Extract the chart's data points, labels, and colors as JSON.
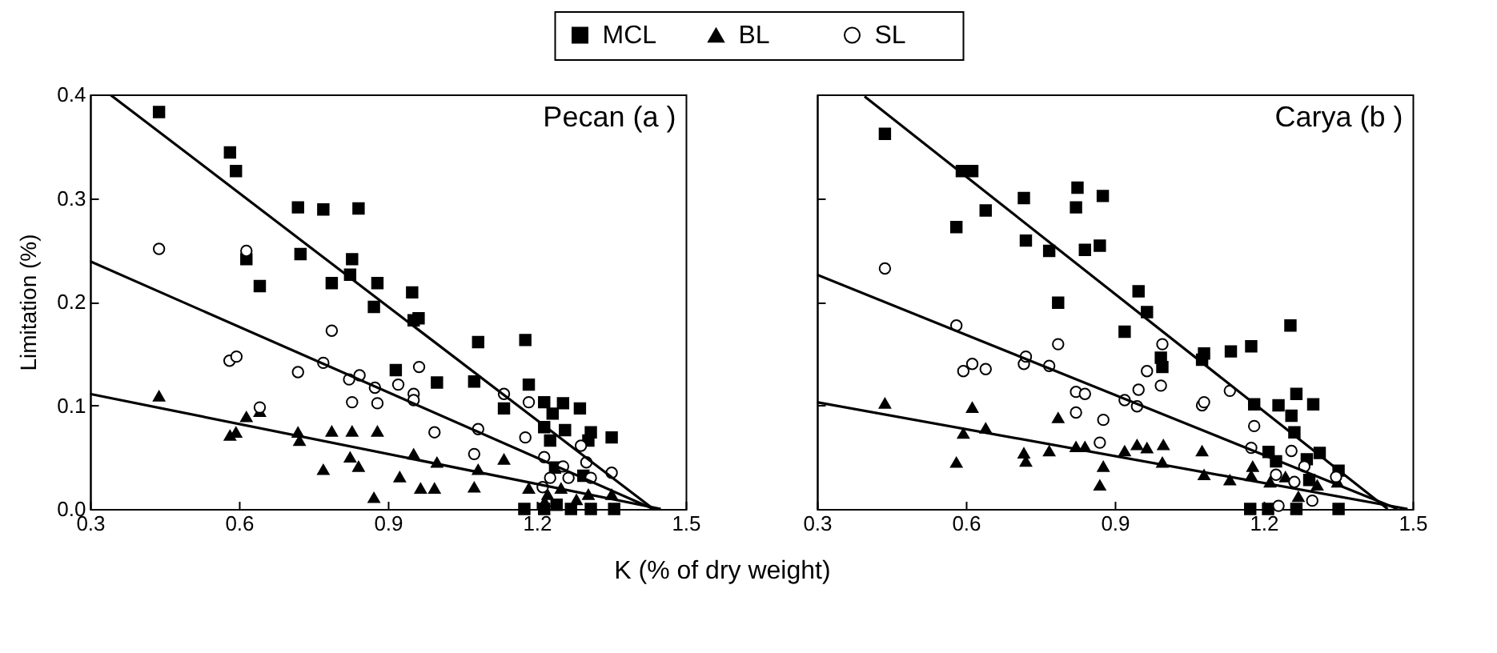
{
  "chart_data": [
    {
      "type": "scatter",
      "ylabel": "Limitation (%)",
      "xlabel": "K (% of dry weight)",
      "annotations": [
        "Pecan (a )"
      ],
      "legend": "top",
      "grid": false,
      "xlim": [
        0.3,
        1.5
      ],
      "xticks": [
        0.3,
        0.6,
        0.9,
        1.2,
        1.5
      ],
      "ylim": [
        0,
        0.4
      ],
      "yticks": [
        {
          "value": 0,
          "label": "0.0"
        },
        0.1,
        0.2,
        0.3,
        0.4
      ],
      "series": [
        {
          "name": "MCL",
          "color": "#000000",
          "marker": "square",
          "x": [
            0.439,
            0.582,
            0.594,
            0.615,
            0.642,
            0.719,
            0.77,
            0.841,
            0.724,
            0.787,
            0.828,
            0.824,
            0.879,
            0.872,
            0.916,
            0.949,
            0.962,
            0.952,
            1.082,
            1.177,
            1.074,
            1.134,
            1.184,
            1.215,
            1.253,
            1.287,
            1.232,
            1.215,
            1.257,
            1.309,
            1.351,
            1.304,
            1.227,
            0.999,
            1.237,
            1.294,
            1.175,
            1.215,
            1.269,
            1.309,
            1.356,
            1.24
          ],
          "values": [
            0.383,
            0.344,
            0.326,
            0.241,
            0.215,
            0.291,
            0.289,
            0.29,
            0.246,
            0.218,
            0.241,
            0.226,
            0.218,
            0.195,
            0.134,
            0.209,
            0.184,
            0.182,
            0.161,
            0.163,
            0.123,
            0.097,
            0.12,
            0.103,
            0.102,
            0.097,
            0.092,
            0.079,
            0.076,
            0.074,
            0.069,
            0.066,
            0.066,
            0.122,
            0.04,
            0.032,
            0,
            0,
            0,
            0,
            0,
            0.004
          ]
        },
        {
          "name": "BL",
          "color": "#000000",
          "marker": "triangle",
          "x": [
            0.439,
            0.582,
            0.594,
            0.615,
            0.642,
            0.719,
            0.722,
            0.787,
            0.828,
            0.879,
            0.824,
            0.841,
            0.77,
            0.872,
            0.952,
            0.999,
            0.924,
            0.966,
            0.994,
            1.074,
            1.082,
            1.134,
            1.184,
            1.222,
            1.249,
            1.304,
            1.351,
            1.28,
            1.216
          ],
          "values": [
            0.109,
            0.071,
            0.074,
            0.089,
            0.094,
            0.074,
            0.066,
            0.075,
            0.075,
            0.075,
            0.05,
            0.041,
            0.038,
            0.011,
            0.053,
            0.045,
            0.031,
            0.02,
            0.02,
            0.021,
            0.038,
            0.048,
            0.02,
            0.014,
            0.02,
            0.014,
            0.014,
            0.009,
            0.007
          ]
        },
        {
          "name": "SL",
          "color": "#000000",
          "marker": "circle",
          "x": [
            0.439,
            0.615,
            0.581,
            0.595,
            0.719,
            0.787,
            0.77,
            0.822,
            0.843,
            0.874,
            0.828,
            0.879,
            0.642,
            0.963,
            0.921,
            0.952,
            0.952,
            0.994,
            1.082,
            1.134,
            1.184,
            1.074,
            1.177,
            1.215,
            1.253,
            1.289,
            1.3,
            1.351,
            1.227,
            1.264,
            1.309,
            1.212
          ],
          "values": [
            0.251,
            0.249,
            0.143,
            0.147,
            0.132,
            0.172,
            0.141,
            0.125,
            0.129,
            0.117,
            0.103,
            0.102,
            0.098,
            0.137,
            0.12,
            0.111,
            0.105,
            0.074,
            0.077,
            0.111,
            0.103,
            0.053,
            0.069,
            0.05,
            0.041,
            0.061,
            0.045,
            0.035,
            0.03,
            0.03,
            0.03,
            0.021
          ]
        },
        {
          "type": "line",
          "color": "#000000",
          "x": [
            0.34,
            1.435
          ],
          "values": [
            0.4,
            0
          ]
        },
        {
          "type": "line",
          "color": "#000000",
          "x": [
            0.3,
            1.435
          ],
          "values": [
            0.239,
            0
          ]
        },
        {
          "type": "line",
          "color": "#000000",
          "x": [
            0.3,
            1.45
          ],
          "values": [
            0.111,
            0
          ]
        }
      ]
    },
    {
      "type": "scatter",
      "annotations": [
        "Carya (b )"
      ],
      "grid": false,
      "tick_labels": "x",
      "xlim": [
        0.3,
        1.5
      ],
      "xticks": [
        0.3,
        0.6,
        0.9,
        1.2,
        1.5
      ],
      "ylim": [
        0,
        0.4
      ],
      "yticks": [
        {
          "value": 0,
          "label": null
        },
        {
          "value": 0.1,
          "label": null
        },
        {
          "value": 0.2,
          "label": null
        },
        {
          "value": 0.3,
          "label": null
        },
        {
          "value": 0.4,
          "label": null
        }
      ],
      "series": [
        {
          "name": "MCL",
          "color": "#000000",
          "marker": "square",
          "x": [
            0.437,
            0.592,
            0.613,
            0.581,
            0.64,
            0.717,
            0.721,
            0.768,
            0.786,
            0.825,
            0.822,
            0.876,
            0.84,
            0.87,
            0.948,
            0.965,
            0.92,
            0.993,
            0.996,
            1.08,
            1.134,
            1.175,
            1.076,
            1.254,
            1.181,
            1.23,
            1.266,
            1.3,
            1.256,
            1.262,
            1.21,
            1.225,
            1.287,
            1.313,
            1.351,
            1.173,
            1.209,
            1.266,
            1.351,
            1.292
          ],
          "values": [
            0.362,
            0.326,
            0.326,
            0.272,
            0.288,
            0.3,
            0.259,
            0.249,
            0.199,
            0.31,
            0.291,
            0.302,
            0.25,
            0.254,
            0.21,
            0.19,
            0.171,
            0.146,
            0.137,
            0.15,
            0.152,
            0.157,
            0.144,
            0.177,
            0.101,
            0.1,
            0.111,
            0.101,
            0.09,
            0.074,
            0.055,
            0.046,
            0.048,
            0.054,
            0.037,
            0,
            0,
            0,
            0,
            0.028
          ]
        },
        {
          "name": "BL",
          "color": "#000000",
          "marker": "triangle",
          "x": [
            0.437,
            0.613,
            0.595,
            0.581,
            0.64,
            0.717,
            0.721,
            0.768,
            0.786,
            0.822,
            0.84,
            0.877,
            0.87,
            0.92,
            0.945,
            0.965,
            0.998,
            0.996,
            1.076,
            1.08,
            1.132,
            1.175,
            1.178,
            1.213,
            1.244,
            1.27,
            1.308,
            1.349
          ],
          "values": [
            0.102,
            0.098,
            0.073,
            0.045,
            0.078,
            0.054,
            0.046,
            0.056,
            0.088,
            0.06,
            0.06,
            0.041,
            0.023,
            0.056,
            0.062,
            0.059,
            0.062,
            0.045,
            0.056,
            0.033,
            0.028,
            0.032,
            0.041,
            0.026,
            0.031,
            0.012,
            0.023,
            0.026
          ]
        },
        {
          "name": "SL",
          "color": "#000000",
          "marker": "circle",
          "x": [
            0.437,
            0.581,
            0.595,
            0.613,
            0.64,
            0.717,
            0.721,
            0.768,
            0.786,
            0.822,
            0.84,
            0.822,
            0.877,
            0.87,
            0.996,
            0.965,
            0.993,
            0.948,
            0.92,
            0.945,
            1.076,
            1.08,
            1.132,
            1.181,
            1.175,
            1.256,
            1.282,
            1.225,
            1.262,
            1.298,
            1.23,
            1.346
          ],
          "values": [
            0.232,
            0.177,
            0.133,
            0.14,
            0.135,
            0.14,
            0.147,
            0.138,
            0.159,
            0.113,
            0.111,
            0.093,
            0.086,
            0.064,
            0.159,
            0.133,
            0.119,
            0.115,
            0.105,
            0.099,
            0.1,
            0.103,
            0.114,
            0.08,
            0.059,
            0.056,
            0.041,
            0.033,
            0.026,
            0.008,
            0.003,
            0.031
          ]
        },
        {
          "type": "line",
          "color": "#000000",
          "x": [
            0.396,
            1.45
          ],
          "values": [
            0.398,
            0
          ]
        },
        {
          "type": "line",
          "color": "#000000",
          "x": [
            0.3,
            1.47
          ],
          "values": [
            0.226,
            0
          ]
        },
        {
          "type": "line",
          "color": "#000000",
          "x": [
            0.3,
            1.49
          ],
          "values": [
            0.103,
            0
          ]
        }
      ]
    }
  ]
}
